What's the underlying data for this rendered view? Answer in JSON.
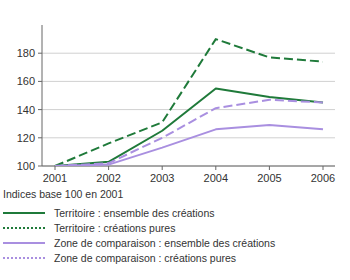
{
  "chart_data": {
    "type": "line",
    "subtitle": "Indices base 100 en 2001",
    "categories": [
      "2001",
      "2002",
      "2003",
      "2004",
      "2005",
      "2006"
    ],
    "ylim": [
      100,
      200
    ],
    "yticks": [
      100,
      120,
      140,
      160,
      180
    ],
    "grid": true,
    "legend": "bottom",
    "series": [
      {
        "name": "Territoire : ensemble des créations",
        "color": "#1f7a3a",
        "line_style": "solid",
        "values": [
          100,
          103,
          125,
          155,
          149,
          145
        ]
      },
      {
        "name": "Territoire : créations pures",
        "color": "#1f7a3a",
        "line_style": "dashed",
        "values": [
          100,
          116,
          131,
          190,
          177,
          174
        ]
      },
      {
        "name": "Zone de comparaison : ensemble des créations",
        "color": "#a98fe0",
        "line_style": "solid",
        "values": [
          100,
          101,
          113,
          126,
          129,
          126
        ]
      },
      {
        "name": "Zone de comparaison : créations pures",
        "color": "#a98fe0",
        "line_style": "dashed",
        "values": [
          100,
          102,
          120,
          141,
          147,
          145
        ]
      }
    ]
  }
}
